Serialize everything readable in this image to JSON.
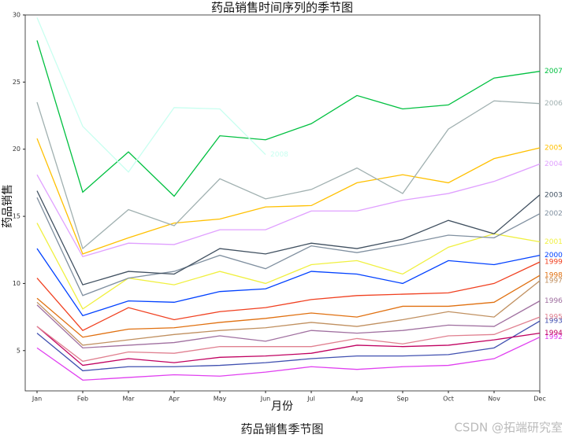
{
  "chart_data": {
    "type": "line",
    "title": "药品销售时间序列的季节图",
    "x_label": "月份",
    "y_label": "药品销售",
    "caption": "药品销售季节图",
    "watermark": "CSDN @拓端研究室",
    "categories": [
      "Jan",
      "Feb",
      "Mar",
      "Apr",
      "May",
      "Jun",
      "Jul",
      "Aug",
      "Sep",
      "Oct",
      "Nov",
      "Dec"
    ],
    "ylim": [
      2,
      30
    ],
    "yticks": [
      5,
      10,
      15,
      20,
      25,
      30
    ],
    "series": [
      {
        "name": "1992",
        "color": "#e040f0",
        "values": [
          5.2,
          2.8,
          3.0,
          3.2,
          3.1,
          3.4,
          3.8,
          3.6,
          3.8,
          3.9,
          4.4,
          6.0
        ]
      },
      {
        "name": "1993",
        "color": "#4050b0",
        "values": [
          6.3,
          3.5,
          3.8,
          3.8,
          3.9,
          4.1,
          4.4,
          4.6,
          4.6,
          4.7,
          5.2,
          7.2
        ]
      },
      {
        "name": "1994",
        "color": "#c00060",
        "values": [
          6.8,
          3.9,
          4.4,
          4.1,
          4.5,
          4.6,
          4.8,
          5.4,
          5.3,
          5.4,
          5.8,
          6.3
        ]
      },
      {
        "name": "1995",
        "color": "#e08090",
        "values": [
          6.8,
          4.2,
          4.9,
          4.8,
          5.3,
          5.3,
          5.3,
          5.9,
          5.5,
          6.1,
          6.2,
          7.5
        ]
      },
      {
        "name": "1996",
        "color": "#a070a0",
        "values": [
          8.4,
          5.2,
          5.4,
          5.6,
          6.1,
          5.7,
          6.5,
          6.3,
          6.5,
          6.9,
          6.8,
          8.7
        ]
      },
      {
        "name": "1997",
        "color": "#c09060",
        "values": [
          8.6,
          5.4,
          5.8,
          6.2,
          6.5,
          6.7,
          7.1,
          6.8,
          7.3,
          7.9,
          7.5,
          10.2
        ]
      },
      {
        "name": "1998",
        "color": "#e07010",
        "values": [
          8.9,
          6.0,
          6.6,
          6.7,
          7.1,
          7.4,
          7.8,
          7.5,
          8.3,
          8.3,
          8.6,
          10.6
        ]
      },
      {
        "name": "1999",
        "color": "#f04020",
        "values": [
          10.4,
          6.5,
          8.2,
          7.3,
          7.9,
          8.2,
          8.8,
          9.1,
          9.2,
          9.3,
          10.0,
          11.6
        ]
      },
      {
        "name": "2000",
        "color": "#0040ff",
        "values": [
          12.6,
          7.6,
          8.7,
          8.6,
          9.4,
          9.6,
          10.9,
          10.7,
          10.0,
          11.7,
          11.4,
          12.1
        ]
      },
      {
        "name": "2001",
        "color": "#f0f040",
        "values": [
          14.5,
          8.1,
          10.4,
          9.9,
          10.9,
          10.0,
          11.4,
          11.7,
          10.7,
          12.7,
          13.7,
          13.1
        ]
      },
      {
        "name": "2002",
        "color": "#8090a0",
        "values": [
          16.4,
          9.1,
          10.4,
          10.9,
          12.1,
          11.1,
          12.8,
          12.3,
          12.9,
          13.6,
          13.4,
          15.2
        ]
      },
      {
        "name": "2003",
        "color": "#405060",
        "values": [
          16.9,
          9.9,
          10.9,
          10.7,
          12.6,
          12.2,
          13.0,
          12.6,
          13.3,
          14.7,
          13.7,
          16.6
        ]
      },
      {
        "name": "2004",
        "color": "#e0a0ff",
        "values": [
          18.1,
          12.0,
          13.0,
          12.9,
          14.0,
          14.0,
          15.4,
          15.4,
          16.2,
          16.7,
          17.6,
          18.9
        ]
      },
      {
        "name": "2005",
        "color": "#ffc000",
        "values": [
          20.8,
          12.2,
          13.4,
          14.5,
          14.8,
          15.7,
          15.8,
          17.5,
          18.1,
          17.5,
          19.3,
          20.1
        ]
      },
      {
        "name": "2006",
        "color": "#a0b0b0",
        "values": [
          23.5,
          12.6,
          15.5,
          14.3,
          17.8,
          16.3,
          17.0,
          18.6,
          16.7,
          21.5,
          23.6,
          23.4
        ]
      },
      {
        "name": "2007",
        "color": "#00c040",
        "values": [
          28.1,
          16.8,
          19.8,
          16.5,
          21.0,
          20.7,
          21.9,
          24.0,
          23.0,
          23.3,
          25.3,
          25.8
        ]
      },
      {
        "name": "2008",
        "color": "#c8fff0",
        "values": [
          29.8,
          21.7,
          18.3,
          23.1,
          23.0,
          19.6,
          null,
          null,
          null,
          null,
          null,
          null
        ]
      }
    ]
  }
}
